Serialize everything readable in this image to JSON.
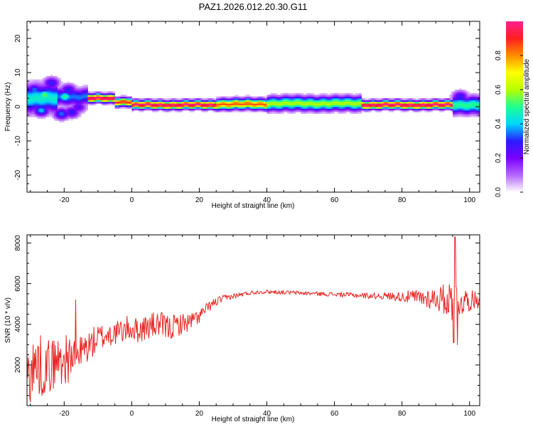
{
  "title": "PAZ1.2026.012.20.30.G11",
  "colorbar": {
    "label": "Normalized spectral amplitude",
    "ticks": [
      "0.0",
      "0.2",
      "0.4",
      "0.6",
      "0.8"
    ],
    "tick_values": [
      0.0,
      0.2,
      0.4,
      0.6,
      0.8
    ],
    "range": [
      0,
      1
    ],
    "colors": [
      "#ffffff",
      "#b566ff",
      "#7a00ff",
      "#2a1cff",
      "#00d7ff",
      "#1fff8f",
      "#b6ff00",
      "#ffff00",
      "#ff8c00",
      "#ff1f1f",
      "#ff1f8f"
    ]
  },
  "chart_data": [
    {
      "type": "heatmap",
      "xlabel": "Height of straight line (km)",
      "ylabel": "Frequency (Hz)",
      "xlim": [
        -31,
        103
      ],
      "ylim": [
        -25,
        25
      ],
      "xticks": [
        -20,
        0,
        20,
        40,
        60,
        80,
        100
      ],
      "yticks": [
        -20,
        -10,
        0,
        10,
        20
      ],
      "xtick_labels": [
        "-20",
        "0",
        "20",
        "40",
        "60",
        "80",
        "100"
      ],
      "ytick_labels": [
        "-20",
        "-10",
        "0",
        "10",
        "20"
      ],
      "grid": false,
      "colormap": "rainbow",
      "band_segments": [
        {
          "x": [
            -31,
            -22
          ],
          "center": 2.5,
          "halfwidth": 4.0,
          "peak": 0.45
        },
        {
          "x": [
            -22,
            -13
          ],
          "center": 3.0,
          "halfwidth": 2.5,
          "peak": 0.35
        },
        {
          "x": [
            -13,
            -5
          ],
          "center": 2.5,
          "halfwidth": 1.2,
          "peak": 1.0
        },
        {
          "x": [
            -5,
            0
          ],
          "center": 1.5,
          "halfwidth": 1.2,
          "peak": 0.9
        },
        {
          "x": [
            0,
            25
          ],
          "center": 0.6,
          "halfwidth": 1.2,
          "peak": 1.0
        },
        {
          "x": [
            25,
            40
          ],
          "center": 0.8,
          "halfwidth": 1.5,
          "peak": 0.85
        },
        {
          "x": [
            40,
            68
          ],
          "center": 1.0,
          "halfwidth": 2.0,
          "peak": 0.6
        },
        {
          "x": [
            68,
            95
          ],
          "center": 0.6,
          "halfwidth": 1.2,
          "peak": 1.0
        },
        {
          "x": [
            95,
            103
          ],
          "center": 0.6,
          "halfwidth": 2.5,
          "peak": 0.5
        }
      ],
      "blobs": [
        {
          "x": -29,
          "y": 5,
          "amp": 0.35
        },
        {
          "x": -27,
          "y": -1,
          "amp": 0.4
        },
        {
          "x": -24,
          "y": 7,
          "amp": 0.3
        },
        {
          "x": -21,
          "y": -2,
          "amp": 0.35
        },
        {
          "x": -19,
          "y": 5,
          "amp": 0.3
        },
        {
          "x": -18,
          "y": -1.5,
          "amp": 0.3
        },
        {
          "x": -16,
          "y": 0,
          "amp": 0.25
        },
        {
          "x": -26,
          "y": 3.5,
          "amp": 0.55
        },
        {
          "x": -20,
          "y": 3,
          "amp": 0.5
        },
        {
          "x": 97,
          "y": 3,
          "amp": 0.3
        }
      ]
    },
    {
      "type": "line",
      "xlabel": "Height of straight line (km)",
      "ylabel": "SNR (10 * v/v)",
      "xlim": [
        -31,
        103
      ],
      "ylim": [
        0,
        8400
      ],
      "xticks": [
        -20,
        0,
        20,
        40,
        60,
        80,
        100
      ],
      "yticks": [
        2000,
        4000,
        6000,
        8000
      ],
      "xtick_labels": [
        "-20",
        "0",
        "20",
        "40",
        "60",
        "80",
        "100"
      ],
      "ytick_labels": [
        "2000",
        "4000",
        "6000",
        "8000"
      ],
      "grid": false,
      "series": [
        {
          "color": "#e8231f",
          "x": [
            -31,
            -28,
            -25,
            -22,
            -19,
            -16,
            -13,
            -10,
            -7,
            -4,
            -1,
            2,
            5,
            8,
            11,
            14,
            17,
            20,
            23,
            26,
            29,
            32,
            35,
            38,
            41,
            44,
            47,
            50,
            53,
            56,
            59,
            62,
            65,
            68,
            71,
            74,
            77,
            80,
            83,
            86,
            89,
            92,
            95,
            98,
            101,
            103
          ],
          "y": [
            1500,
            2000,
            1900,
            2200,
            2300,
            2500,
            2900,
            3300,
            3500,
            3600,
            3800,
            3700,
            3900,
            4000,
            3800,
            4000,
            4100,
            4400,
            4900,
            5200,
            5350,
            5450,
            5550,
            5600,
            5600,
            5580,
            5560,
            5540,
            5520,
            5500,
            5480,
            5460,
            5440,
            5420,
            5400,
            5400,
            5380,
            5360,
            5340,
            5300,
            5280,
            5250,
            5200,
            5150,
            5200,
            5200
          ],
          "noise": [
            1600,
            1600,
            1400,
            1300,
            1200,
            900,
            800,
            700,
            650,
            600,
            650,
            600,
            650,
            650,
            650,
            550,
            450,
            350,
            250,
            200,
            150,
            120,
            110,
            100,
            100,
            100,
            100,
            100,
            100,
            100,
            110,
            120,
            130,
            140,
            150,
            170,
            200,
            250,
            350,
            450,
            550,
            700,
            1100,
            700,
            450,
            400
          ],
          "spikes": [
            {
              "x": 95.7,
              "y": 8300
            },
            {
              "x": 95.3,
              "y": 3100
            },
            {
              "x": 96.4,
              "y": 3000
            },
            {
              "x": -16.6,
              "y": 5200
            },
            {
              "x": -30.2,
              "y": 400
            }
          ]
        }
      ]
    }
  ]
}
